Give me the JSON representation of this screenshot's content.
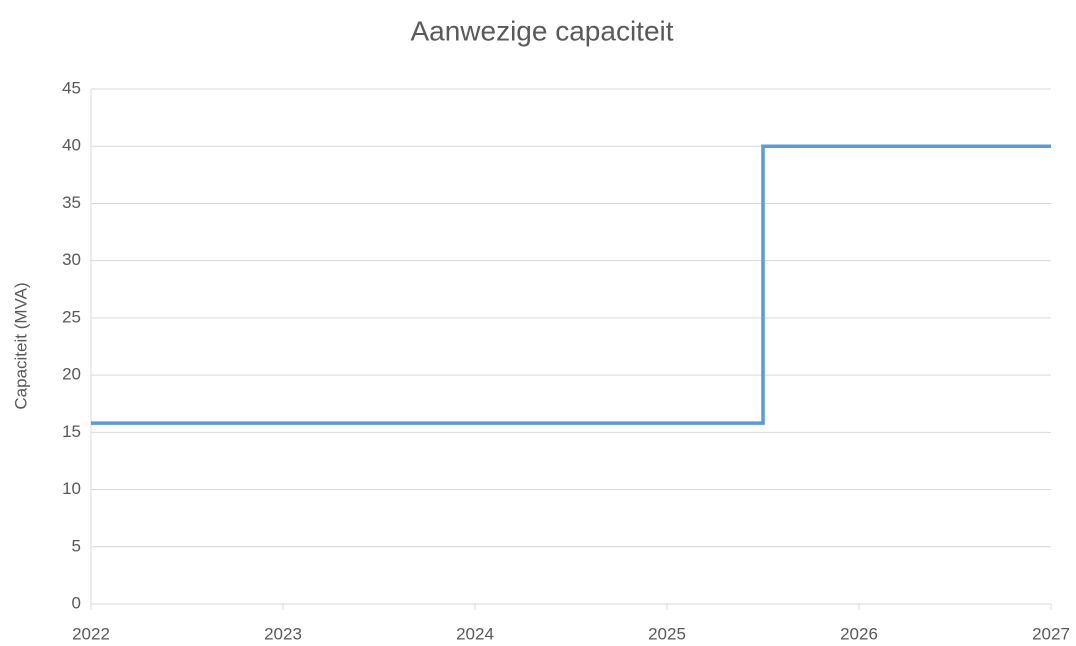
{
  "chart_data": {
    "type": "line",
    "title": "Aanwezige capaciteit",
    "y_label": "Capaciteit (MVA)",
    "x": [
      2022,
      2025.5,
      2025.5,
      2027
    ],
    "values": [
      15.8,
      15.8,
      40,
      40
    ],
    "color": "#5b9bd5",
    "xlim": [
      2022,
      2027
    ],
    "xticks": [
      2022,
      2023,
      2024,
      2025,
      2026,
      2027
    ],
    "ylim": [
      0,
      45
    ],
    "yticks": [
      0,
      5,
      10,
      15,
      20,
      25,
      30,
      35,
      40,
      45
    ],
    "grid": true
  }
}
